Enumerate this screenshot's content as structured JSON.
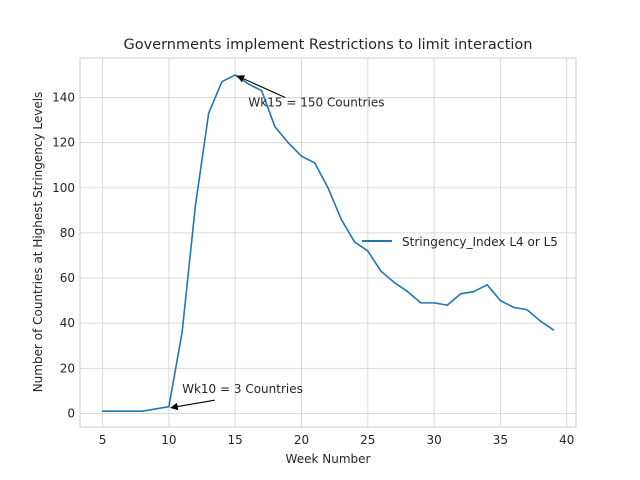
{
  "chart_data": {
    "type": "line",
    "title": "Governments implement Restrictions to limit interaction",
    "xlabel": "Week Number",
    "ylabel": "Number of Countries at Highest Stringency Levels",
    "xlim": [
      3.3,
      40.7
    ],
    "ylim": [
      -6,
      157.5
    ],
    "xticks": [
      5,
      10,
      15,
      20,
      25,
      30,
      35,
      40
    ],
    "yticks": [
      0,
      20,
      40,
      60,
      80,
      100,
      120,
      140
    ],
    "grid": true,
    "legend_position": "right",
    "colors": {
      "series": "#1f77b4",
      "grid": "#d9d9d9",
      "text": "#262626"
    },
    "series": [
      {
        "name": "Stringency_Index L4 or L5",
        "x": [
          5,
          6,
          7,
          8,
          9,
          10,
          11,
          12,
          13,
          14,
          15,
          16,
          17,
          18,
          19,
          20,
          21,
          22,
          23,
          24,
          25,
          26,
          27,
          28,
          29,
          30,
          31,
          32,
          33,
          34,
          35,
          36,
          37,
          38,
          39
        ],
        "y": [
          1,
          1,
          1,
          1,
          2,
          3,
          36,
          92,
          133,
          147,
          150,
          146,
          143,
          127,
          120,
          114,
          111,
          100,
          86,
          76,
          72,
          63,
          58,
          54,
          49,
          49,
          48,
          53,
          54,
          57,
          50,
          47,
          46,
          41,
          37
        ]
      }
    ],
    "annotations": [
      {
        "text": "Wk15 = 150 Countries",
        "point": [
          15,
          150
        ],
        "text_at": [
          16,
          136
        ]
      },
      {
        "text": "Wk10 = 3 Countries",
        "point": [
          10,
          3
        ],
        "text_at": [
          11,
          9
        ]
      }
    ]
  }
}
